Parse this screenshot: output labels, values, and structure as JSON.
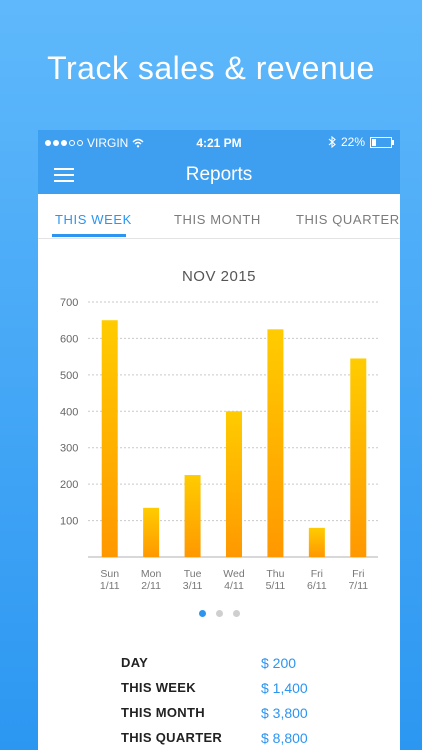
{
  "headline": "Track sales & revenue",
  "status_bar": {
    "carrier": "VIRGIN",
    "time": "4:21 PM",
    "battery": "22%"
  },
  "nav": {
    "title": "Reports"
  },
  "tabs": [
    {
      "label": "THIS WEEK",
      "active": true
    },
    {
      "label": "THIS MONTH",
      "active": false
    },
    {
      "label": "THIS QUARTER",
      "active": false
    }
  ],
  "chart_data": {
    "type": "bar",
    "title": "NOV 2015",
    "categories": [
      "Sun 1/11",
      "Mon 2/11",
      "Tue 3/11",
      "Wed 4/11",
      "Thu 5/11",
      "Fri 6/11",
      "Fri 7/11"
    ],
    "category_lines": [
      [
        "Sun",
        "1/11"
      ],
      [
        "Mon",
        "2/11"
      ],
      [
        "Tue",
        "3/11"
      ],
      [
        "Wed",
        "4/11"
      ],
      [
        "Thu",
        "5/11"
      ],
      [
        "Fri",
        "6/11"
      ],
      [
        "Fri",
        "7/11"
      ]
    ],
    "values": [
      650,
      135,
      225,
      400,
      625,
      80,
      545
    ],
    "ylim": [
      0,
      700
    ],
    "yticks": [
      100,
      200,
      300,
      400,
      500,
      600,
      700
    ],
    "grid": true,
    "bar_color_top": "#ffcc00",
    "bar_color_bottom": "#ff9800"
  },
  "pager": {
    "count": 3,
    "active": 0
  },
  "summary": [
    {
      "label": "DAY",
      "value": "$ 200"
    },
    {
      "label": "THIS WEEK",
      "value": "$ 1,400"
    },
    {
      "label": "THIS MONTH",
      "value": "$ 3,800"
    },
    {
      "label": "THIS QUARTER",
      "value": "$ 8,800"
    }
  ],
  "colors": {
    "accent": "#2c95f0",
    "nav_bar": "#3e9ef0"
  }
}
